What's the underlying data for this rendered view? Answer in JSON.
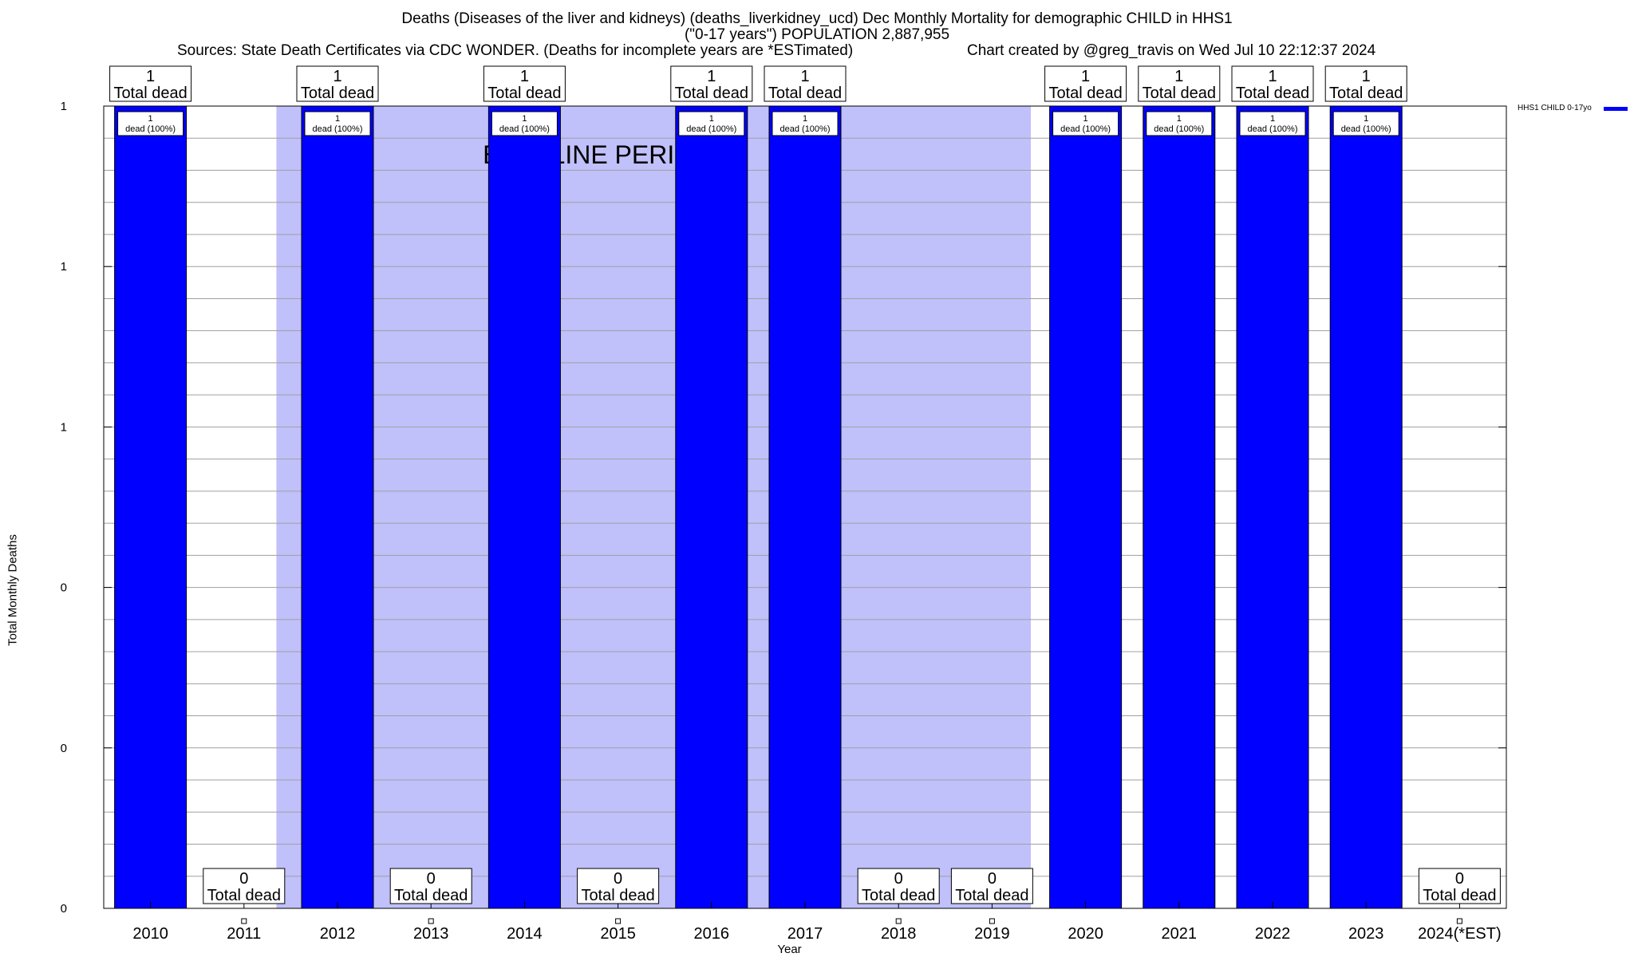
{
  "header": {
    "title_line1": "Deaths (Diseases of the liver and kidneys) (deaths_liverkidney_ucd) Dec Monthly Mortality for demographic CHILD in HHS1",
    "title_line2": "(\"0-17 years\") POPULATION 2,887,955",
    "sources": "Sources: State Death Certificates via CDC WONDER. (Deaths for incomplete years are *ESTimated)",
    "credit": "Chart created by @greg_travis on Wed Jul 10 22:12:37 2024"
  },
  "chart_data": {
    "type": "bar",
    "xlabel": "Year",
    "ylabel": "Total Monthly Deaths",
    "ylim": [
      0,
      1
    ],
    "y_tick_labels": [
      "0",
      "0",
      "0",
      "1",
      "1",
      "1"
    ],
    "grid": true,
    "legend_position": "top-right",
    "categories": [
      "2010",
      "2011",
      "2012",
      "2013",
      "2014",
      "2015",
      "2016",
      "2017",
      "2018",
      "2019",
      "2020",
      "2021",
      "2022",
      "2023",
      "2024(*EST)"
    ],
    "series": [
      {
        "name": "HHS1 CHILD 0-17yo",
        "color": "#0000ff",
        "values": [
          1,
          0,
          1,
          0,
          1,
          0,
          1,
          1,
          0,
          0,
          1,
          1,
          1,
          1,
          0
        ]
      }
    ],
    "total_labels": [
      "1\nTotal dead",
      "0\nTotal dead",
      "1\nTotal dead",
      "0\nTotal dead",
      "1\nTotal dead",
      "0\nTotal dead",
      "1\nTotal dead",
      "1\nTotal dead",
      "0\nTotal dead",
      "0\nTotal dead",
      "1\nTotal dead",
      "1\nTotal dead",
      "1\nTotal dead",
      "1\nTotal dead",
      "0\nTotal dead"
    ],
    "bar_labels": [
      "1\ndead (100%)",
      "",
      "1\ndead (100%)",
      "",
      "1\ndead (100%)",
      "",
      "1\ndead (100%)",
      "1\ndead (100%)",
      "",
      "",
      "1\ndead (100%)",
      "1\ndead (100%)",
      "1\ndead (100%)",
      "1\ndead (100%)",
      ""
    ],
    "baseline_period": {
      "label": "BASELINE PERIOD",
      "start": "2012",
      "end": "2019",
      "color": "#c0c0fa"
    }
  }
}
